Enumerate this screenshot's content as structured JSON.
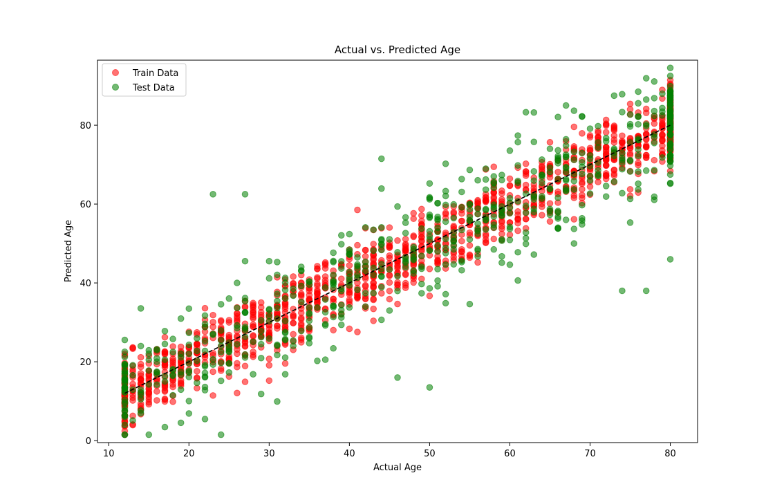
{
  "chart_data": {
    "type": "scatter",
    "title": "Actual vs. Predicted Age",
    "xlabel": "Actual Age",
    "ylabel": "Predicted Age",
    "xlim": [
      8.6,
      83.4
    ],
    "ylim": [
      -0.5,
      96.5
    ],
    "xticks": [
      10,
      20,
      30,
      40,
      50,
      60,
      70,
      80
    ],
    "yticks": [
      0,
      20,
      40,
      60,
      80
    ],
    "grid": false,
    "legend_position": "top-left",
    "x_values_integer_ages": [
      12,
      80
    ],
    "series": [
      {
        "name": "Train Data",
        "color": "#ff0000",
        "alpha": 0.55,
        "model": {
          "form": "y = x",
          "spread_sd": 4.5,
          "count": 1400
        }
      },
      {
        "name": "Test Data",
        "color": "#008000",
        "alpha": 0.55,
        "model": {
          "form": "y = x",
          "spread_sd": 7.5,
          "count": 650
        },
        "notable_points": [
          {
            "x": 12,
            "y": 4
          },
          {
            "x": 46,
            "y": 16
          },
          {
            "x": 50,
            "y": 13.5
          },
          {
            "x": 44,
            "y": 71.5
          },
          {
            "x": 23,
            "y": 62.5
          },
          {
            "x": 27,
            "y": 62.5
          },
          {
            "x": 73,
            "y": 87.5
          },
          {
            "x": 76,
            "y": 88.5
          },
          {
            "x": 80,
            "y": 92.5
          },
          {
            "x": 80,
            "y": 88.5
          },
          {
            "x": 80,
            "y": 46
          },
          {
            "x": 74,
            "y": 38
          },
          {
            "x": 77,
            "y": 38
          }
        ]
      }
    ],
    "reference_line": {
      "x": [
        12,
        80
      ],
      "y": [
        12,
        80
      ],
      "style": "dashed",
      "color": "#000000"
    }
  }
}
